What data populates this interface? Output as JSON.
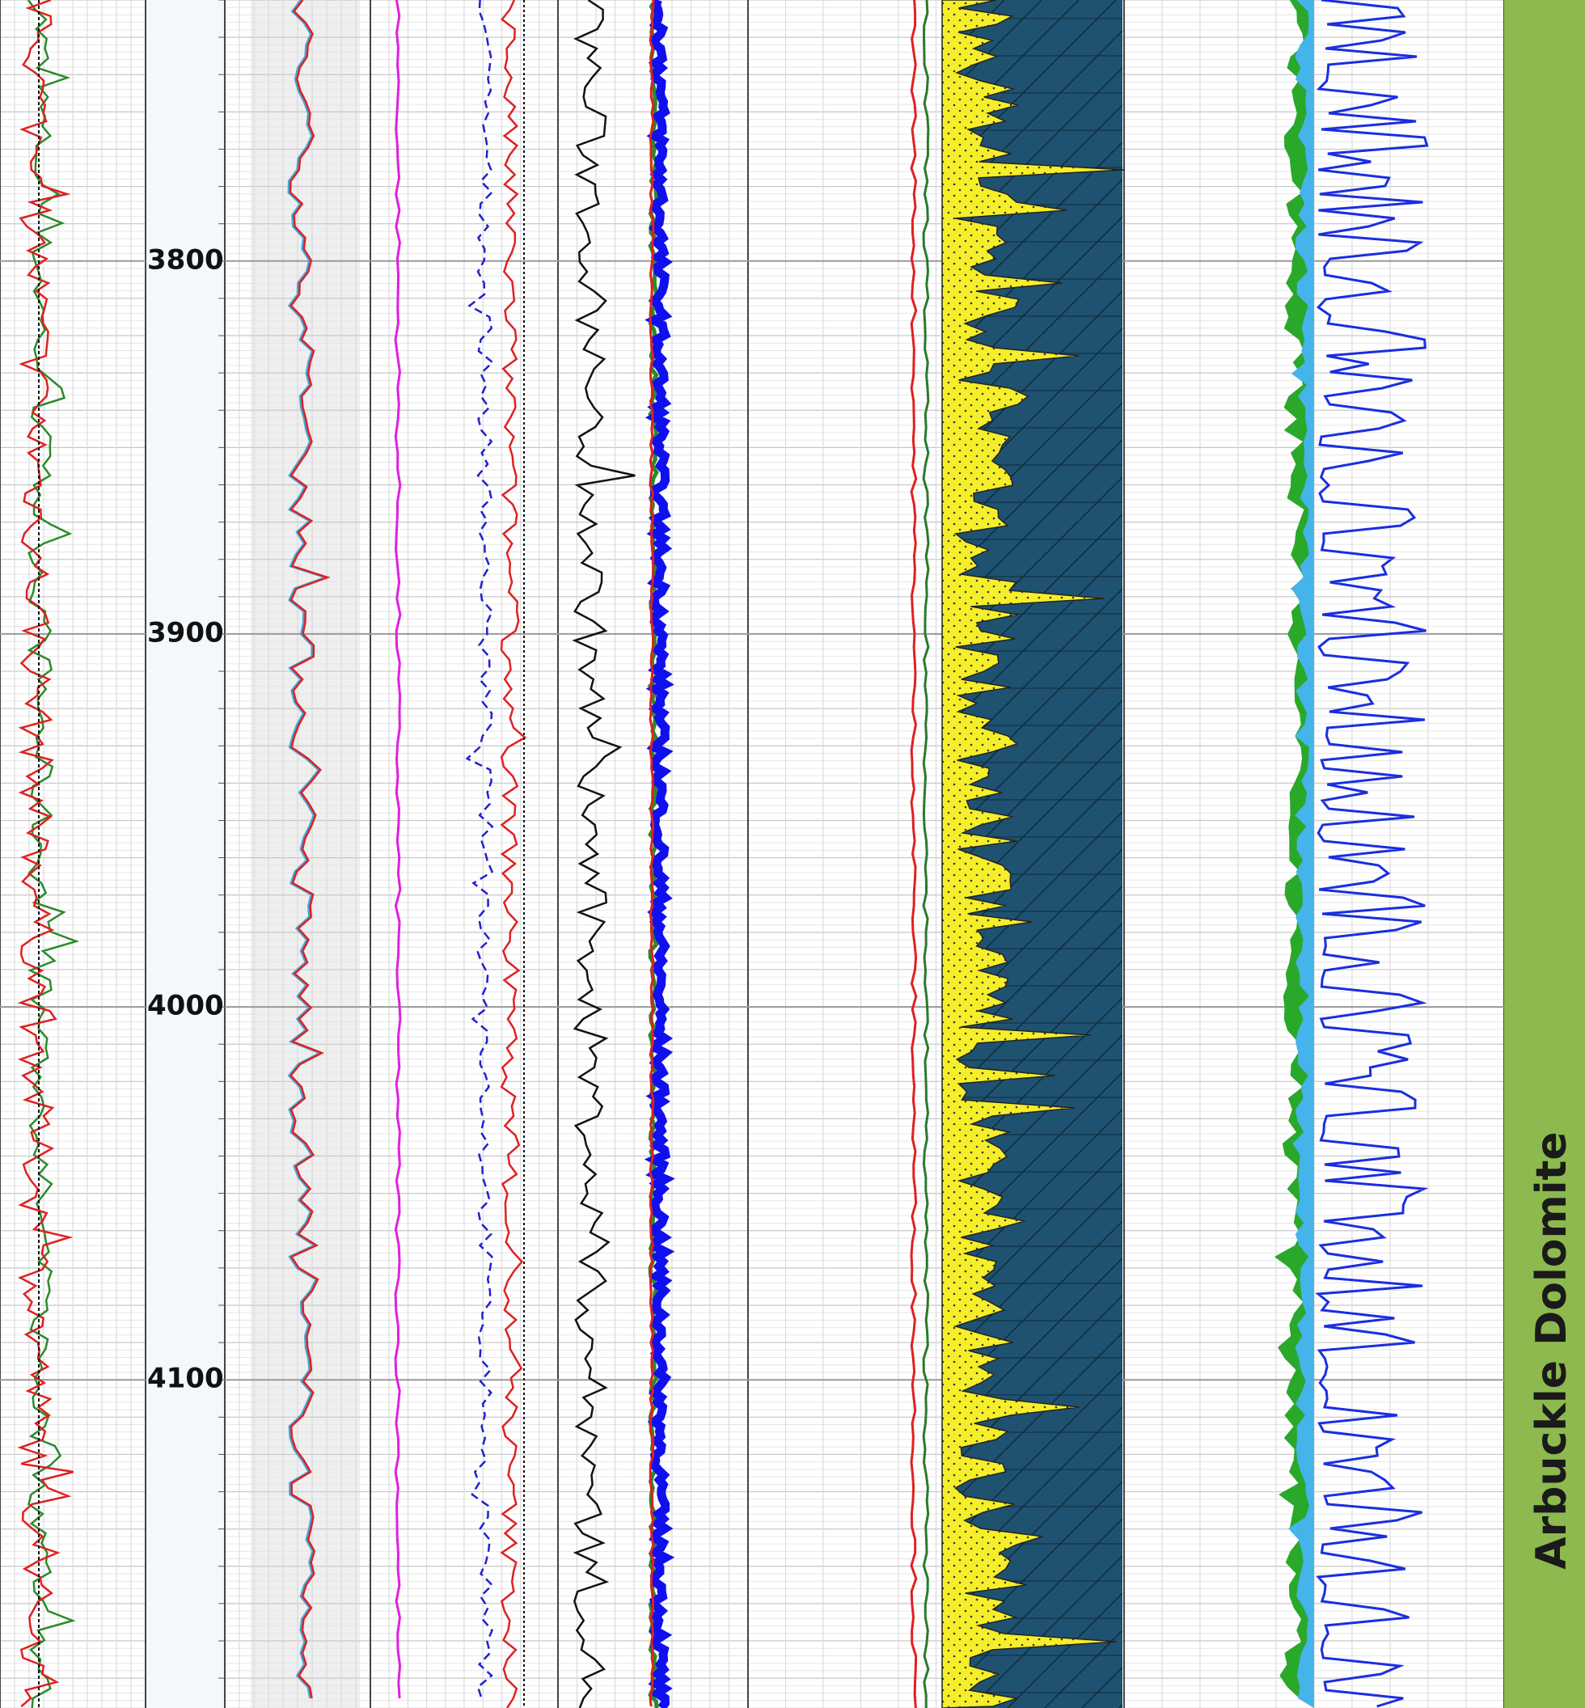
{
  "depth_axis": {
    "range": [
      3730,
      4188
    ],
    "ticks": [
      3800,
      3900,
      4000,
      4100
    ]
  },
  "formation": {
    "name": "Arbuckle Dolomite"
  }
}
